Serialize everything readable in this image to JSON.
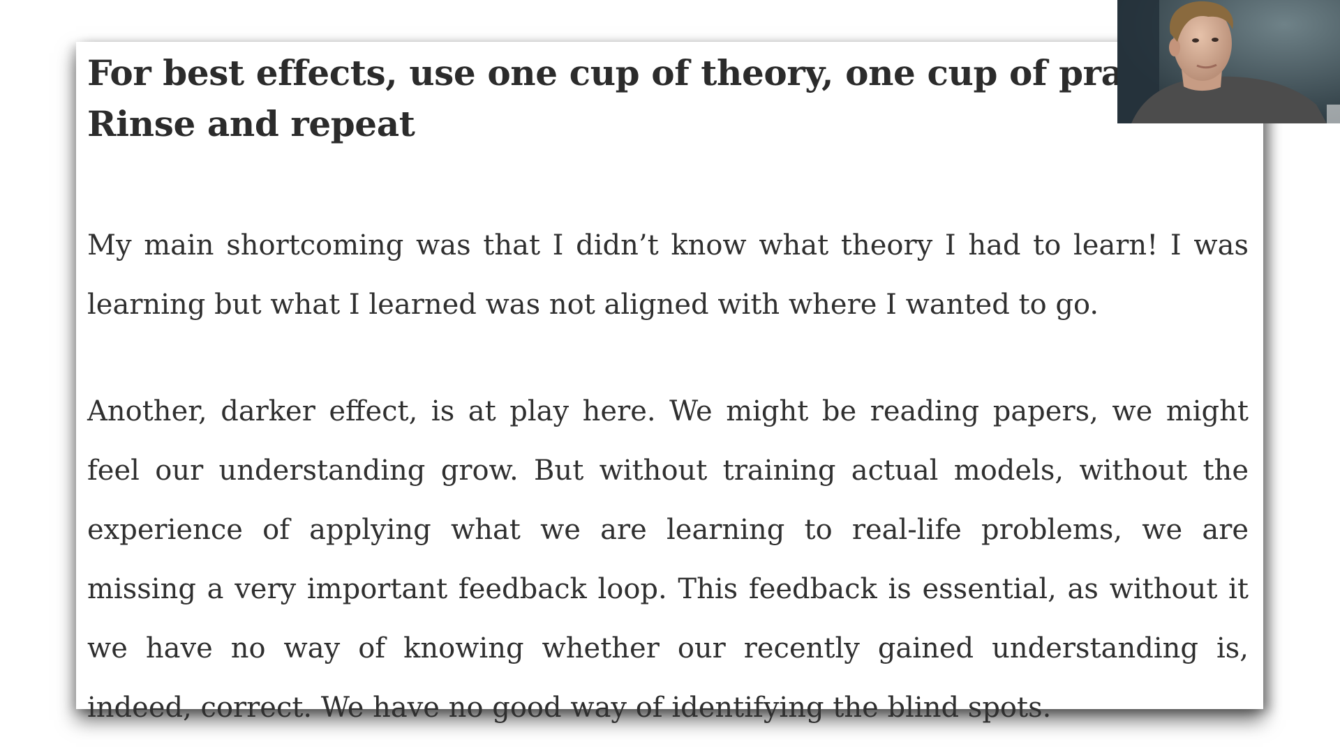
{
  "article": {
    "heading_lines": [
      "For best effects, use one cup of theory, one cup of practice.",
      "Rinse and repeat"
    ],
    "paragraphs": [
      {
        "lines": [
          "My main shortcoming was that I didn’t know what theory I had to learn! I was",
          "learning but what I learned was not aligned with where I wanted to go."
        ]
      },
      {
        "lines": [
          "Another, darker effect, is at play here. We might be reading papers, we might",
          "feel our understanding grow. But without training actual models, without the",
          "experience of applying what we are learning to real-life problems, we are",
          "missing a very important feedback loop. This feedback is essential, as without it",
          "we have no way of knowing whether our recently gained understanding is,",
          "indeed, correct. We have no good way of identifying the blind spots."
        ]
      }
    ]
  },
  "webcam": {
    "icon": "presenter-webcam",
    "colors": {
      "background": "#3f4f56",
      "hair": "#8a6a3e",
      "skin": "#d9b39c",
      "shirt": "#4e4e4e"
    }
  }
}
